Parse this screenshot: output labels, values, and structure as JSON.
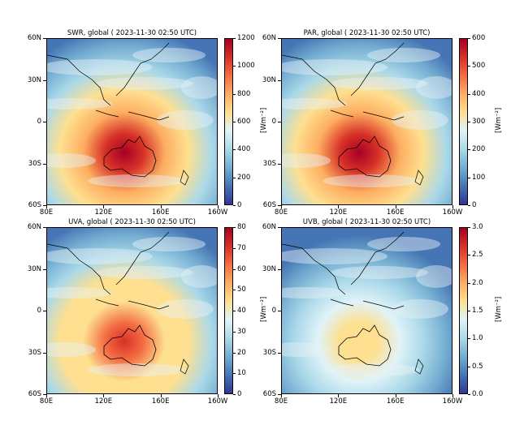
{
  "panels": [
    {
      "title": "SWR, global ( 2023-11-30 02:50 UTC)",
      "cbar_ticks": [
        "0",
        "200",
        "400",
        "600",
        "800",
        "1000",
        "1200"
      ],
      "cbar_label": "[Wm⁻²]",
      "intensity": 1.0
    },
    {
      "title": "PAR, global ( 2023-11-30 02:50 UTC)",
      "cbar_ticks": [
        "0",
        "100",
        "200",
        "300",
        "400",
        "500",
        "600"
      ],
      "cbar_label": "[Wm⁻²]",
      "intensity": 1.0
    },
    {
      "title": "UVA, global ( 2023-11-30 02:50 UTC)",
      "cbar_ticks": [
        "0",
        "10",
        "20",
        "30",
        "40",
        "50",
        "60",
        "70",
        "80"
      ],
      "cbar_label": "[Wm⁻²]",
      "intensity": 0.9
    },
    {
      "title": "UVB, global ( 2023-11-30 02:50 UTC)",
      "cbar_ticks": [
        "0.0",
        "0.5",
        "1.0",
        "1.5",
        "2.0",
        "2.5",
        "3.0"
      ],
      "cbar_label": "[Wm⁻²]",
      "intensity": 0.6
    }
  ],
  "y_ticks": [
    "60N",
    "30N",
    "0",
    "30S",
    "60S"
  ],
  "x_ticks": [
    "80E",
    "120E",
    "160E",
    "160W"
  ],
  "colormap": [
    "#313695",
    "#4575b4",
    "#74add1",
    "#abd9e9",
    "#e0f3f8",
    "#fee090",
    "#fdae61",
    "#f46d43",
    "#d73027",
    "#a50026"
  ]
}
